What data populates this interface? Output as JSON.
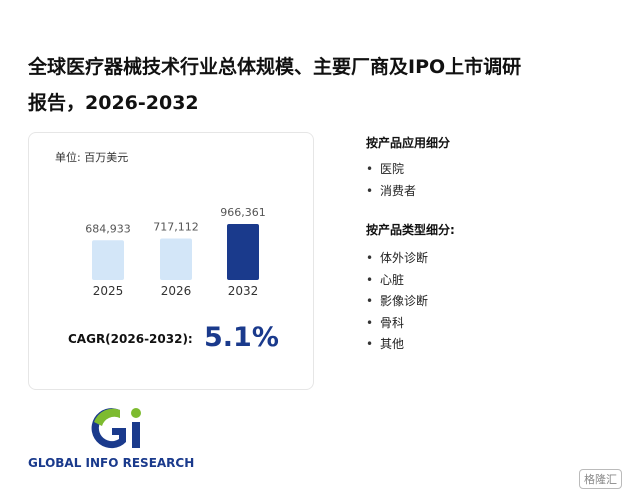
{
  "header": {
    "title_line1": "全球医疗器械技术行业总体规模、主要厂商及IPO上市调研",
    "title_line2": "报告，2026-2032"
  },
  "chart_data": {
    "type": "bar",
    "unit": "单位: 百万美元",
    "categories": [
      "2025",
      "2026",
      "2032"
    ],
    "values": [
      684933,
      717112,
      966361
    ],
    "value_labels": [
      "684,933",
      "717,112",
      "966,361"
    ],
    "colors": [
      "#d3e6f8",
      "#d3e6f8",
      "#1a3a8c"
    ]
  },
  "cagr": {
    "label": "CAGR(2026-2032):",
    "value": "5.1%"
  },
  "sidebar": {
    "application_heading": "按产品应用细分",
    "application_items": [
      "医院",
      "消费者"
    ],
    "type_heading": "按产品类型细分:",
    "type_items": [
      "体外诊断",
      "心脏",
      "影像诊断",
      "骨科",
      "其他"
    ]
  },
  "logo": {
    "text": "GLOBAL INFO RESEARCH"
  },
  "badge": "格隆汇"
}
